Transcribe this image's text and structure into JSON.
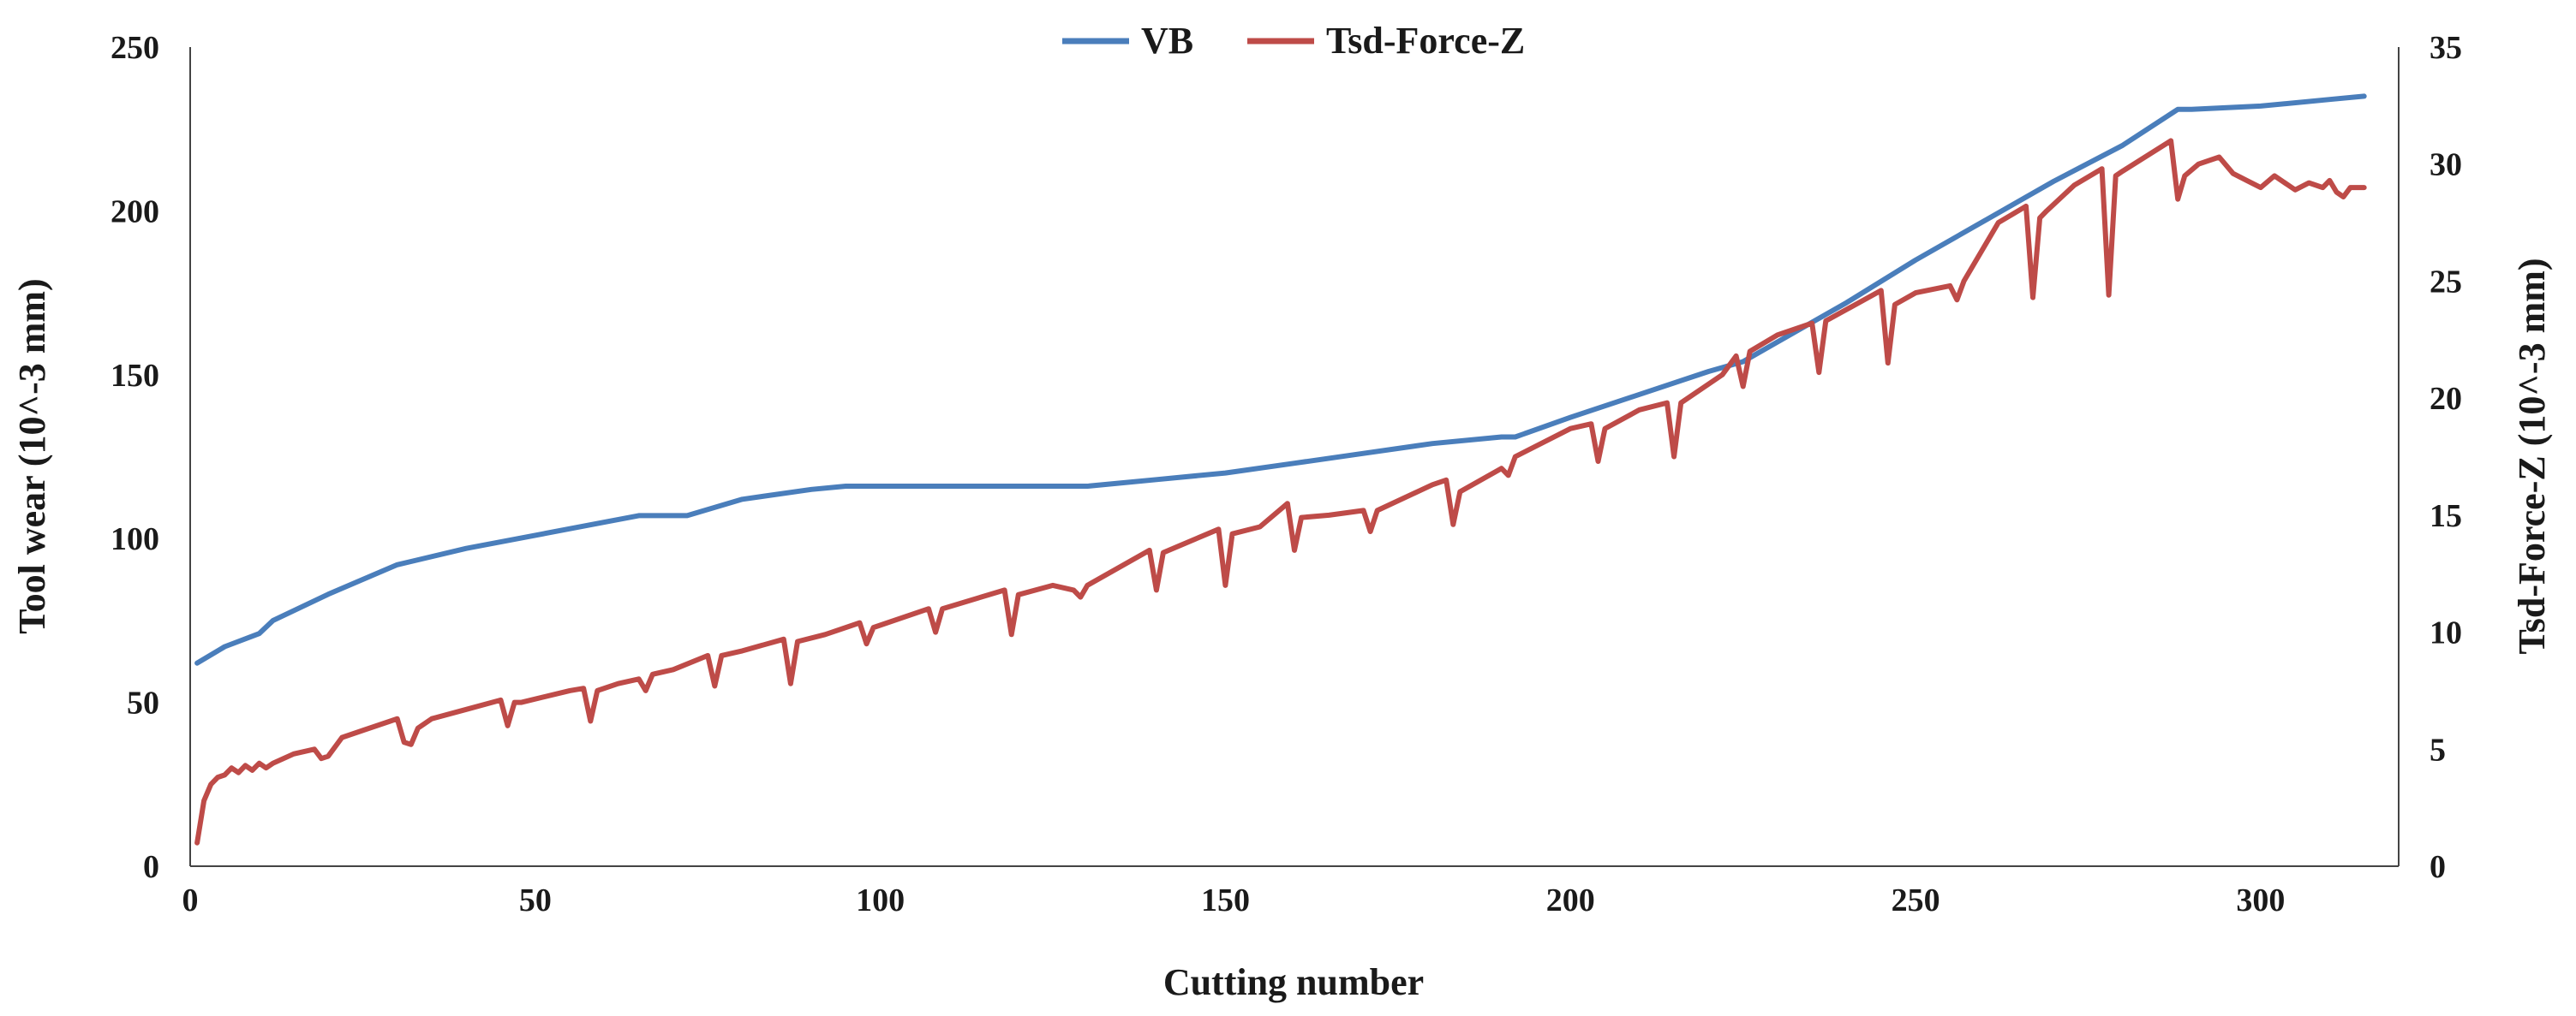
{
  "chart_data": {
    "type": "line",
    "title": "",
    "xlabel": "Cutting number",
    "ylabel": "Tool wear (10^-3 mm)",
    "y2label": "Tsd-Force-Z (10^-3 mm)",
    "xlim": [
      0,
      320
    ],
    "ylim": [
      0,
      250
    ],
    "y2lim": [
      0,
      35
    ],
    "xticks": [
      "0",
      "50",
      "100",
      "150",
      "200",
      "250",
      "300"
    ],
    "yticks": [
      "0",
      "50",
      "100",
      "150",
      "200",
      "250"
    ],
    "y2ticks": [
      "0",
      "5",
      "10",
      "15",
      "20",
      "25",
      "30",
      "35"
    ],
    "legend_position": "top-center",
    "grid": false,
    "series": [
      {
        "name": "VB",
        "axis": "left",
        "color": "#4a7ebb",
        "x": [
          1,
          5,
          10,
          12,
          20,
          30,
          32,
          40,
          50,
          60,
          65,
          70,
          72,
          80,
          90,
          95,
          100,
          110,
          120,
          130,
          140,
          150,
          160,
          170,
          180,
          190,
          192,
          200,
          210,
          220,
          225,
          230,
          240,
          250,
          260,
          270,
          280,
          288,
          290,
          300,
          310,
          315
        ],
        "values": [
          62,
          67,
          71,
          75,
          83,
          92,
          93,
          97,
          101,
          105,
          107,
          107,
          107,
          112,
          115,
          116,
          116,
          116,
          116,
          116,
          118,
          120,
          123,
          126,
          129,
          131,
          131,
          137,
          144,
          151,
          154,
          160,
          172,
          185,
          197,
          209,
          220,
          231,
          231,
          232,
          234,
          235
        ]
      },
      {
        "name": "Tsd-Force-Z",
        "axis": "right",
        "color": "#be4b48",
        "x": [
          1,
          2,
          3,
          4,
          5,
          6,
          7,
          8,
          9,
          10,
          11,
          12,
          15,
          18,
          19,
          20,
          22,
          25,
          29,
          30,
          31,
          32,
          33,
          35,
          40,
          45,
          46,
          47,
          48,
          55,
          57,
          58,
          59,
          62,
          65,
          66,
          67,
          70,
          75,
          76,
          77,
          80,
          86,
          87,
          88,
          92,
          97,
          98,
          99,
          107,
          108,
          109,
          118,
          119,
          120,
          125,
          128,
          129,
          130,
          139,
          140,
          141,
          149,
          150,
          151,
          155,
          159,
          160,
          161,
          165,
          170,
          171,
          172,
          180,
          182,
          183,
          184,
          190,
          191,
          192,
          200,
          203,
          204,
          205,
          210,
          214,
          215,
          216,
          222,
          224,
          225,
          226,
          230,
          235,
          236,
          237,
          245,
          246,
          247,
          250,
          255,
          256,
          257,
          262,
          266,
          267,
          268,
          269,
          273,
          277,
          278,
          279,
          280,
          287,
          288,
          289,
          291,
          294,
          296,
          298,
          300,
          302,
          305,
          307,
          309,
          310,
          311,
          312,
          313,
          315
        ],
        "values": [
          1.0,
          2.8,
          3.5,
          3.8,
          3.9,
          4.2,
          4.0,
          4.3,
          4.1,
          4.4,
          4.2,
          4.4,
          4.8,
          5.0,
          4.6,
          4.7,
          5.5,
          5.8,
          6.2,
          6.3,
          5.3,
          5.2,
          5.9,
          6.3,
          6.7,
          7.1,
          6.0,
          7.0,
          7.0,
          7.5,
          7.6,
          6.2,
          7.5,
          7.8,
          8.0,
          7.5,
          8.2,
          8.4,
          9.0,
          7.7,
          9.0,
          9.2,
          9.7,
          7.8,
          9.6,
          9.9,
          10.4,
          9.5,
          10.2,
          11.0,
          10.0,
          11.0,
          11.8,
          9.9,
          11.6,
          12.0,
          11.8,
          11.5,
          12.0,
          13.5,
          11.8,
          13.4,
          14.4,
          12.0,
          14.2,
          14.5,
          15.5,
          13.5,
          14.9,
          15.0,
          15.2,
          14.3,
          15.2,
          16.3,
          16.5,
          14.6,
          16.0,
          17.0,
          16.7,
          17.5,
          18.7,
          18.9,
          17.3,
          18.7,
          19.5,
          19.8,
          17.5,
          19.8,
          21.0,
          21.8,
          20.5,
          22.0,
          22.7,
          23.2,
          21.1,
          23.3,
          24.6,
          21.5,
          24.0,
          24.5,
          24.8,
          24.2,
          25.0,
          27.5,
          28.2,
          24.3,
          27.7,
          28.0,
          29.1,
          29.8,
          24.4,
          29.5,
          29.7,
          31.0,
          28.5,
          29.5,
          30.0,
          30.3,
          29.6,
          29.3,
          29.0,
          29.5,
          28.9,
          29.2,
          29.0,
          29.3,
          28.8,
          28.6,
          29.0,
          29.0
        ]
      }
    ]
  }
}
